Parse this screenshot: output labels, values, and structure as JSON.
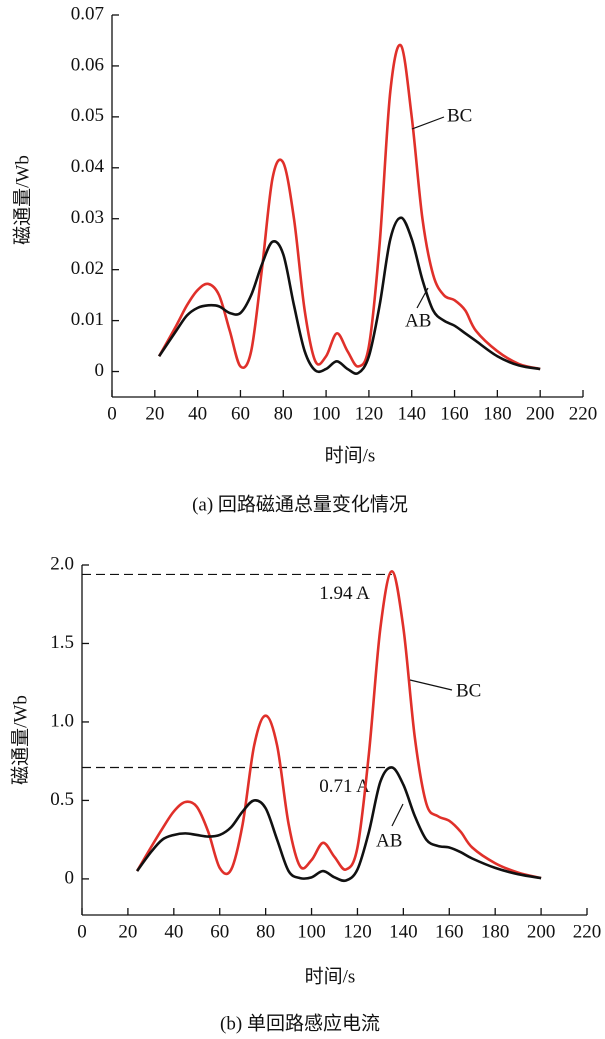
{
  "chart_data": [
    {
      "type": "line",
      "caption": "(a) 回路磁通总量变化情况",
      "xlabel": "时间/s",
      "ylabel": "磁通量/Wb",
      "x": [
        22,
        30,
        35,
        40,
        45,
        50,
        55,
        60,
        65,
        70,
        75,
        80,
        85,
        90,
        95,
        100,
        105,
        110,
        115,
        120,
        125,
        130,
        135,
        140,
        145,
        150,
        155,
        160,
        165,
        170,
        180,
        190,
        200
      ],
      "series": [
        {
          "name": "BC",
          "color": "#e0302a",
          "values": [
            0.003,
            0.009,
            0.013,
            0.016,
            0.0172,
            0.015,
            0.008,
            0.001,
            0.004,
            0.02,
            0.038,
            0.041,
            0.03,
            0.012,
            0.002,
            0.003,
            0.0075,
            0.004,
            0.001,
            0.005,
            0.025,
            0.055,
            0.064,
            0.05,
            0.03,
            0.019,
            0.015,
            0.014,
            0.012,
            0.008,
            0.004,
            0.0015,
            0.0005
          ]
        },
        {
          "name": "AB",
          "color": "#111111",
          "values": [
            0.003,
            0.008,
            0.011,
            0.0125,
            0.013,
            0.0128,
            0.0115,
            0.0115,
            0.015,
            0.021,
            0.0255,
            0.023,
            0.013,
            0.004,
            0.0002,
            0.0005,
            0.002,
            0.0005,
            -0.0003,
            0.003,
            0.013,
            0.026,
            0.0302,
            0.026,
            0.018,
            0.012,
            0.01,
            0.009,
            0.0075,
            0.006,
            0.003,
            0.0012,
            0.0005
          ]
        }
      ],
      "xlim": [
        0,
        220
      ],
      "xticks": [
        0,
        20,
        40,
        60,
        80,
        100,
        120,
        140,
        160,
        180,
        200,
        220
      ],
      "ylim": [
        -0.005,
        0.07
      ],
      "yticks": [
        0,
        0.01,
        0.02,
        0.03,
        0.04,
        0.05,
        0.06,
        0.07
      ]
    },
    {
      "type": "line",
      "caption": "(b) 单回路感应电流",
      "xlabel": "时间/s",
      "ylabel": "磁通量/Wb",
      "x": [
        24,
        30,
        35,
        40,
        45,
        50,
        55,
        60,
        65,
        70,
        75,
        80,
        85,
        90,
        95,
        100,
        105,
        110,
        115,
        120,
        125,
        130,
        135,
        140,
        145,
        150,
        155,
        160,
        165,
        170,
        180,
        190,
        200
      ],
      "series": [
        {
          "name": "BC",
          "color": "#e0302a",
          "values": [
            0.05,
            0.2,
            0.32,
            0.43,
            0.49,
            0.46,
            0.3,
            0.07,
            0.06,
            0.35,
            0.85,
            1.04,
            0.85,
            0.35,
            0.08,
            0.12,
            0.23,
            0.14,
            0.06,
            0.2,
            0.8,
            1.6,
            1.96,
            1.6,
            0.9,
            0.48,
            0.4,
            0.37,
            0.3,
            0.2,
            0.1,
            0.04,
            0.005
          ]
        },
        {
          "name": "AB",
          "color": "#111111",
          "values": [
            0.05,
            0.17,
            0.25,
            0.28,
            0.29,
            0.28,
            0.27,
            0.28,
            0.33,
            0.43,
            0.5,
            0.45,
            0.25,
            0.05,
            0.005,
            0.01,
            0.05,
            0.01,
            -0.01,
            0.06,
            0.3,
            0.62,
            0.71,
            0.6,
            0.4,
            0.25,
            0.21,
            0.2,
            0.17,
            0.13,
            0.07,
            0.03,
            0.005
          ]
        }
      ],
      "reference_lines": [
        {
          "value": 1.94,
          "label": "1.94 A"
        },
        {
          "value": 0.71,
          "label": "0.71 A"
        }
      ],
      "xlim": [
        0,
        220
      ],
      "xticks": [
        0,
        20,
        40,
        60,
        80,
        100,
        120,
        140,
        160,
        180,
        200,
        220
      ],
      "ylim": [
        -0.23,
        2.0
      ],
      "yticks": [
        0,
        0.5,
        {
          "value": 1,
          "label": "1.0"
        },
        1.5,
        {
          "value": 2,
          "label": "2.0"
        }
      ]
    }
  ]
}
